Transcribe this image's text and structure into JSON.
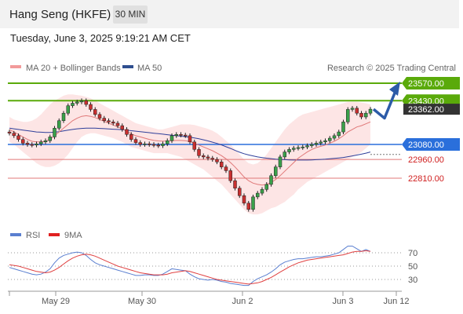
{
  "header": {
    "title": "Hang Seng (HKFE)",
    "timeframe": "30 MIN"
  },
  "datetime": "Tuesday, June 3, 2025 9:19:21 AM CET",
  "legend": {
    "ma20_label": "MA 20 + Bollinger Bands",
    "ma50_label": "MA 50",
    "credit": "Research © 2025 Trading Central"
  },
  "rsi_legend": {
    "rsi_label": "RSI",
    "ma_label": "9MA"
  },
  "colors": {
    "green": "#5aaa0a",
    "blue": "#2a6fdb",
    "red": "#e07878",
    "band": "#fde0e0",
    "ma50": "#2f3f9a",
    "rsi": "#5a7fd0",
    "rsi_ma": "#e04040",
    "arrow": "#2c5ba8"
  },
  "chart_data": [
    {
      "type": "candlestick",
      "x_labels": [
        "May 29",
        "May 30",
        "Jun 2",
        "Jun 3",
        "Jun 12"
      ],
      "price_levels": [
        {
          "value": 23570.0,
          "label": "23570.00",
          "kind": "resistance"
        },
        {
          "value": 23430.0,
          "label": "23430.00",
          "kind": "resistance"
        },
        {
          "value": 23362.0,
          "label": "23362.00",
          "kind": "last_price"
        },
        {
          "value": 23080.0,
          "label": "23080.00",
          "kind": "pivot"
        },
        {
          "value": 22960.0,
          "label": "22960.00",
          "kind": "support"
        },
        {
          "value": 22810.0,
          "label": "22810.00",
          "kind": "support"
        }
      ],
      "close_series": [
        23170,
        23150,
        23120,
        23090,
        23080,
        23075,
        23085,
        23100,
        23110,
        23140,
        23210,
        23270,
        23330,
        23390,
        23410,
        23420,
        23430,
        23400,
        23360,
        23320,
        23290,
        23270,
        23260,
        23250,
        23230,
        23200,
        23160,
        23120,
        23095,
        23080,
        23085,
        23080,
        23075,
        23070,
        23085,
        23110,
        23150,
        23160,
        23155,
        23150,
        23100,
        23040,
        22990,
        22980,
        22970,
        22960,
        22940,
        22900,
        22870,
        22790,
        22730,
        22670,
        22610,
        22560,
        22660,
        22690,
        22720,
        22760,
        22830,
        22900,
        22980,
        23020,
        23040,
        23050,
        23055,
        23060,
        23070,
        23080,
        23090,
        23100,
        23110,
        23130,
        23150,
        23180,
        23260,
        23360,
        23370,
        23330,
        23300,
        23330,
        23362
      ],
      "ma20_series": [
        23200,
        23180,
        23160,
        23140,
        23120,
        23105,
        23100,
        23100,
        23105,
        23120,
        23150,
        23180,
        23210,
        23240,
        23270,
        23290,
        23305,
        23310,
        23305,
        23295,
        23280,
        23265,
        23250,
        23235,
        23220,
        23205,
        23185,
        23165,
        23150,
        23140,
        23130,
        23120,
        23112,
        23108,
        23106,
        23108,
        23110,
        23112,
        23112,
        23110,
        23102,
        23090,
        23075,
        23060,
        23045,
        23030,
        23010,
        22990,
        22965,
        22935,
        22900,
        22860,
        22820,
        22790,
        22770,
        22760,
        22755,
        22760,
        22775,
        22800,
        22830,
        22865,
        22900,
        22935,
        22970,
        22995,
        23020,
        23040,
        23055,
        23065,
        23075,
        23090,
        23105,
        23125,
        23150,
        23180,
        23200,
        23220,
        23230,
        23245,
        23260
      ],
      "ma50_series": [
        23210,
        23205,
        23200,
        23195,
        23190,
        23185,
        23180,
        23178,
        23176,
        23176,
        23178,
        23182,
        23188,
        23195,
        23200,
        23205,
        23208,
        23210,
        23210,
        23210,
        23208,
        23206,
        23204,
        23202,
        23200,
        23198,
        23195,
        23190,
        23186,
        23182,
        23178,
        23174,
        23170,
        23166,
        23162,
        23158,
        23154,
        23150,
        23146,
        23142,
        23138,
        23132,
        23125,
        23117,
        23108,
        23098,
        23088,
        23076,
        23062,
        23048,
        23032,
        23018,
        23006,
        22996,
        22988,
        22980,
        22975,
        22970,
        22966,
        22962,
        22960,
        22958,
        22956,
        22955,
        22955,
        22955,
        22955,
        22956,
        22958,
        22960,
        22962,
        22965,
        22968,
        22972,
        22976,
        22982,
        22988,
        22995,
        23002,
        23010,
        23020
      ],
      "bollinger_upper": [
        23300,
        23280,
        23270,
        23260,
        23260,
        23270,
        23290,
        23320,
        23360,
        23400,
        23430,
        23450,
        23470,
        23480,
        23480,
        23475,
        23470,
        23460,
        23450,
        23430,
        23410,
        23390,
        23370,
        23350,
        23330,
        23310,
        23290,
        23270,
        23250,
        23240,
        23230,
        23220,
        23210,
        23200,
        23200,
        23210,
        23220,
        23230,
        23240,
        23240,
        23240,
        23235,
        23225,
        23215,
        23205,
        23190,
        23170,
        23140,
        23110,
        23080,
        23040,
        23000,
        22960,
        22930,
        22920,
        22930,
        22960,
        23000,
        23050,
        23100,
        23150,
        23200,
        23240,
        23270,
        23300,
        23320,
        23330,
        23340,
        23350,
        23360,
        23370,
        23380,
        23390,
        23400,
        23410,
        23420,
        23420,
        23420,
        23415,
        23410,
        23400
      ],
      "bollinger_lower": [
        23100,
        23080,
        23050,
        23020,
        22990,
        22960,
        22930,
        22910,
        22900,
        22900,
        22910,
        22930,
        22960,
        23000,
        23050,
        23100,
        23140,
        23160,
        23170,
        23170,
        23160,
        23150,
        23140,
        23130,
        23115,
        23100,
        23080,
        23060,
        23050,
        23040,
        23030,
        23020,
        23010,
        23010,
        23010,
        23010,
        23000,
        22990,
        22980,
        22960,
        22940,
        22920,
        22900,
        22880,
        22850,
        22820,
        22790,
        22760,
        22720,
        22680,
        22640,
        22600,
        22560,
        22530,
        22520,
        22520,
        22530,
        22550,
        22570,
        22580,
        22600,
        22620,
        22650,
        22680,
        22720,
        22750,
        22780,
        22800,
        22820,
        22840,
        22860,
        22880,
        22900,
        22920,
        22940,
        22960,
        22980,
        23000,
        23020,
        23050,
        23080
      ],
      "forecast_path": [
        23362,
        23290,
        23570
      ]
    },
    {
      "type": "line",
      "name": "RSI",
      "levels": [
        70,
        50,
        30
      ],
      "series": [
        {
          "name": "RSI",
          "values": [
            48,
            46,
            44,
            42,
            40,
            38,
            37,
            38,
            41,
            46,
            55,
            62,
            66,
            68,
            70,
            71,
            70,
            66,
            60,
            55,
            52,
            50,
            48,
            46,
            44,
            42,
            40,
            38,
            36,
            36,
            37,
            37,
            36,
            36,
            38,
            42,
            46,
            45,
            44,
            43,
            38,
            34,
            31,
            30,
            29,
            30,
            29,
            27,
            26,
            24,
            23,
            22,
            21,
            21,
            27,
            31,
            34,
            37,
            41,
            46,
            52,
            56,
            58,
            60,
            61,
            61,
            62,
            63,
            64,
            64,
            65,
            66,
            68,
            70,
            75,
            80,
            80,
            76,
            72,
            75,
            72
          ]
        },
        {
          "name": "9MA",
          "values": [
            52,
            51,
            50,
            48,
            46,
            44,
            42,
            41,
            40,
            41,
            44,
            48,
            53,
            58,
            62,
            65,
            67,
            68,
            67,
            65,
            62,
            59,
            56,
            53,
            50,
            48,
            46,
            44,
            42,
            40,
            39,
            38,
            37,
            37,
            37,
            38,
            40,
            41,
            42,
            43,
            42,
            40,
            38,
            36,
            34,
            32,
            30,
            29,
            28,
            27,
            26,
            25,
            24,
            23,
            24,
            25,
            27,
            30,
            33,
            37,
            41,
            45,
            49,
            52,
            55,
            57,
            59,
            60,
            61,
            62,
            63,
            64,
            65,
            66,
            67,
            69,
            71,
            72,
            72,
            73,
            72
          ]
        }
      ]
    }
  ]
}
